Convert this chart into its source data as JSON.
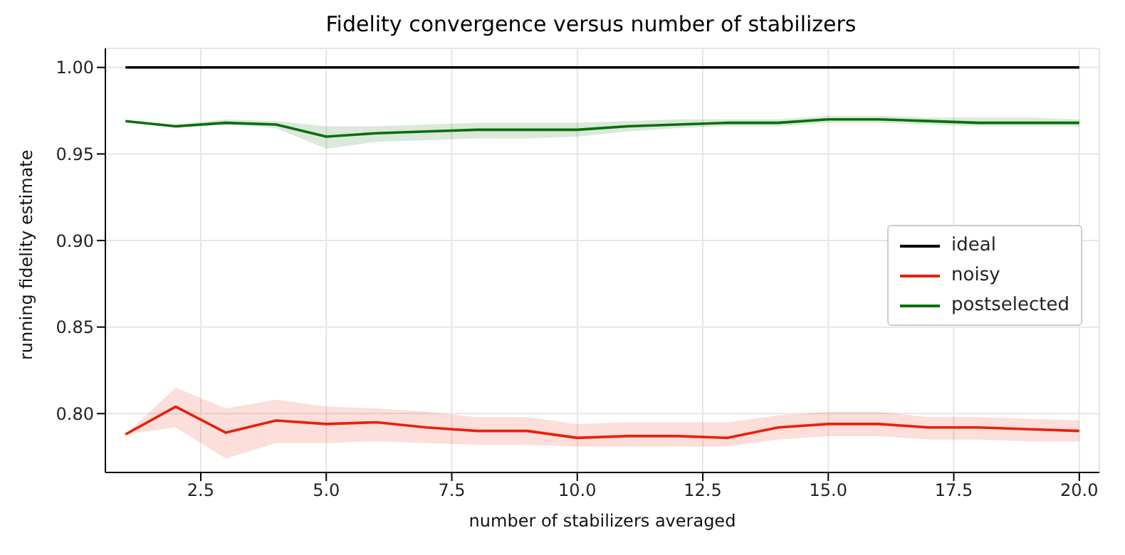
{
  "chart_data": {
    "type": "line",
    "title": "Fidelity convergence versus number of stabilizers",
    "xlabel": "number of stabilizers averaged",
    "ylabel": "running fidelity estimate",
    "x": [
      1,
      2,
      3,
      4,
      5,
      6,
      7,
      8,
      9,
      10,
      11,
      12,
      13,
      14,
      15,
      16,
      17,
      18,
      19,
      20
    ],
    "series": [
      {
        "name": "ideal",
        "color": "#000000",
        "values": [
          1,
          1,
          1,
          1,
          1,
          1,
          1,
          1,
          1,
          1,
          1,
          1,
          1,
          1,
          1,
          1,
          1,
          1,
          1,
          1
        ]
      },
      {
        "name": "noisy",
        "color": "#e8200a",
        "values": [
          0.788,
          0.804,
          0.789,
          0.796,
          0.794,
          0.795,
          0.792,
          0.79,
          0.79,
          0.786,
          0.787,
          0.787,
          0.786,
          0.792,
          0.794,
          0.794,
          0.792,
          0.792,
          0.791,
          0.79
        ],
        "lower": [
          0.788,
          0.792,
          0.774,
          0.783,
          0.783,
          0.784,
          0.783,
          0.782,
          0.782,
          0.781,
          0.781,
          0.781,
          0.781,
          0.785,
          0.787,
          0.787,
          0.785,
          0.785,
          0.784,
          0.784
        ],
        "upper": [
          0.788,
          0.815,
          0.803,
          0.808,
          0.804,
          0.803,
          0.801,
          0.798,
          0.798,
          0.794,
          0.795,
          0.795,
          0.795,
          0.799,
          0.801,
          0.801,
          0.798,
          0.798,
          0.797,
          0.796
        ]
      },
      {
        "name": "postselected",
        "color": "#0a6e0a",
        "values": [
          0.969,
          0.966,
          0.968,
          0.967,
          0.96,
          0.962,
          0.963,
          0.964,
          0.964,
          0.964,
          0.966,
          0.967,
          0.968,
          0.968,
          0.97,
          0.97,
          0.969,
          0.968,
          0.968,
          0.968
        ],
        "lower": [
          0.969,
          0.965,
          0.967,
          0.965,
          0.953,
          0.957,
          0.958,
          0.959,
          0.959,
          0.96,
          0.963,
          0.965,
          0.966,
          0.966,
          0.968,
          0.968,
          0.967,
          0.966,
          0.966,
          0.966
        ],
        "upper": [
          0.969,
          0.967,
          0.97,
          0.969,
          0.966,
          0.966,
          0.967,
          0.968,
          0.968,
          0.968,
          0.969,
          0.97,
          0.97,
          0.97,
          0.972,
          0.972,
          0.971,
          0.971,
          0.971,
          0.97
        ]
      }
    ],
    "xlim": [
      0.6,
      20.4
    ],
    "xticks": [
      2.5,
      {
        "value": 5,
        "label": "5.0"
      },
      7.5,
      {
        "value": 10,
        "label": "10.0"
      },
      12.5,
      {
        "value": 15,
        "label": "15.0"
      },
      17.5,
      {
        "value": 20,
        "label": "20.0"
      }
    ],
    "ylim": [
      0.766,
      1.011
    ],
    "yticks": [
      {
        "value": 0.8,
        "label": "0.80"
      },
      0.85,
      {
        "value": 0.9,
        "label": "0.90"
      },
      0.95,
      {
        "value": 1,
        "label": "1.00"
      }
    ],
    "grid": true,
    "legend": "right",
    "marker": "none",
    "line_style": "solid"
  }
}
